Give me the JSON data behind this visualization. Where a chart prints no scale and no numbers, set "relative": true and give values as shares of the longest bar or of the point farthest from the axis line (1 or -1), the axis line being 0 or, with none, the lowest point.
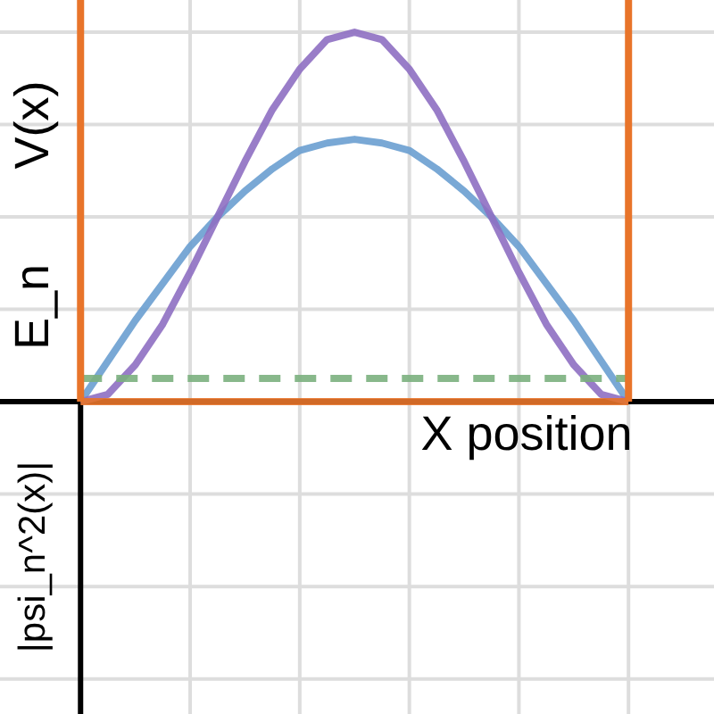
{
  "chart_data": {
    "type": "line",
    "relative": true,
    "xlabel": "X position",
    "ylabel": "E_n",
    "annotations": [
      "V(x)",
      "|psi_n^2(x)|"
    ],
    "categories": [
      null,
      null,
      null,
      null,
      null,
      null,
      null,
      null,
      null,
      null,
      null,
      null,
      null,
      null,
      null,
      null,
      null,
      null,
      null,
      null,
      null
    ],
    "grid": true,
    "line_style": "solid",
    "series": [
      {
        "color": "#6a9fd0",
        "values": [
          0,
          0.11,
          0.22,
          0.32,
          0.42,
          0.5,
          0.57,
          0.63,
          0.68,
          0.7,
          0.71,
          0.7,
          0.68,
          0.63,
          0.57,
          0.5,
          0.42,
          0.32,
          0.22,
          0.11,
          0
        ]
      },
      {
        "color": "#8e6fc2",
        "values": [
          0,
          0.02,
          0.1,
          0.21,
          0.35,
          0.5,
          0.65,
          0.79,
          0.9,
          0.98,
          1,
          0.98,
          0.9,
          0.79,
          0.65,
          0.5,
          0.35,
          0.21,
          0.1,
          0.02,
          0
        ]
      },
      {
        "color": "#7bb07e",
        "line_style": "dashed",
        "values": [
          0.063,
          0.063,
          0.063,
          0.063,
          0.063,
          0.063,
          0.063,
          0.063,
          0.063,
          0.063,
          0.063,
          0.063,
          0.063,
          0.063,
          0.063,
          0.063,
          0.063,
          0.063,
          0.063,
          0.063,
          0.063
        ]
      },
      {
        "color": "#e8742a",
        "values": [
          0,
          0,
          0,
          0,
          0,
          0,
          0,
          0,
          0,
          0,
          0,
          0,
          0,
          0,
          0,
          0,
          0,
          0,
          0,
          0,
          0
        ]
      }
    ]
  }
}
